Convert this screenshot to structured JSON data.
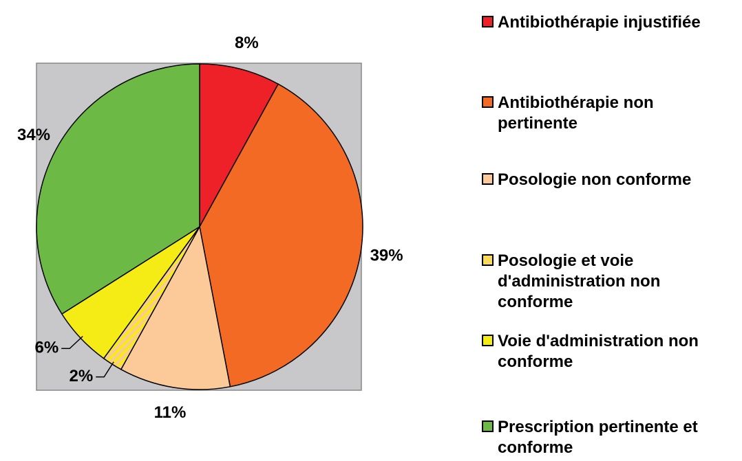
{
  "chart_data": {
    "type": "pie",
    "categories": [
      "Antibiothérapie injustifiée",
      "Antibiothérapie non pertinente",
      "Posologie non conforme",
      "Posologie et voie d'administration non conforme",
      "Voie d'administration non conforme",
      "Prescription pertinente et conforme"
    ],
    "values": [
      8,
      39,
      11,
      2,
      6,
      34
    ],
    "value_labels": [
      "8%",
      "39%",
      "11%",
      "2%",
      "6%",
      "34%"
    ],
    "colors": [
      "#ee2028",
      "#f26a23",
      "#fcc998",
      "#fcc998",
      "#f5ec15",
      "#6cba45"
    ],
    "hatch": [
      null,
      null,
      null,
      "#f5ec15",
      null,
      null
    ],
    "background": "#c8c8ca"
  }
}
